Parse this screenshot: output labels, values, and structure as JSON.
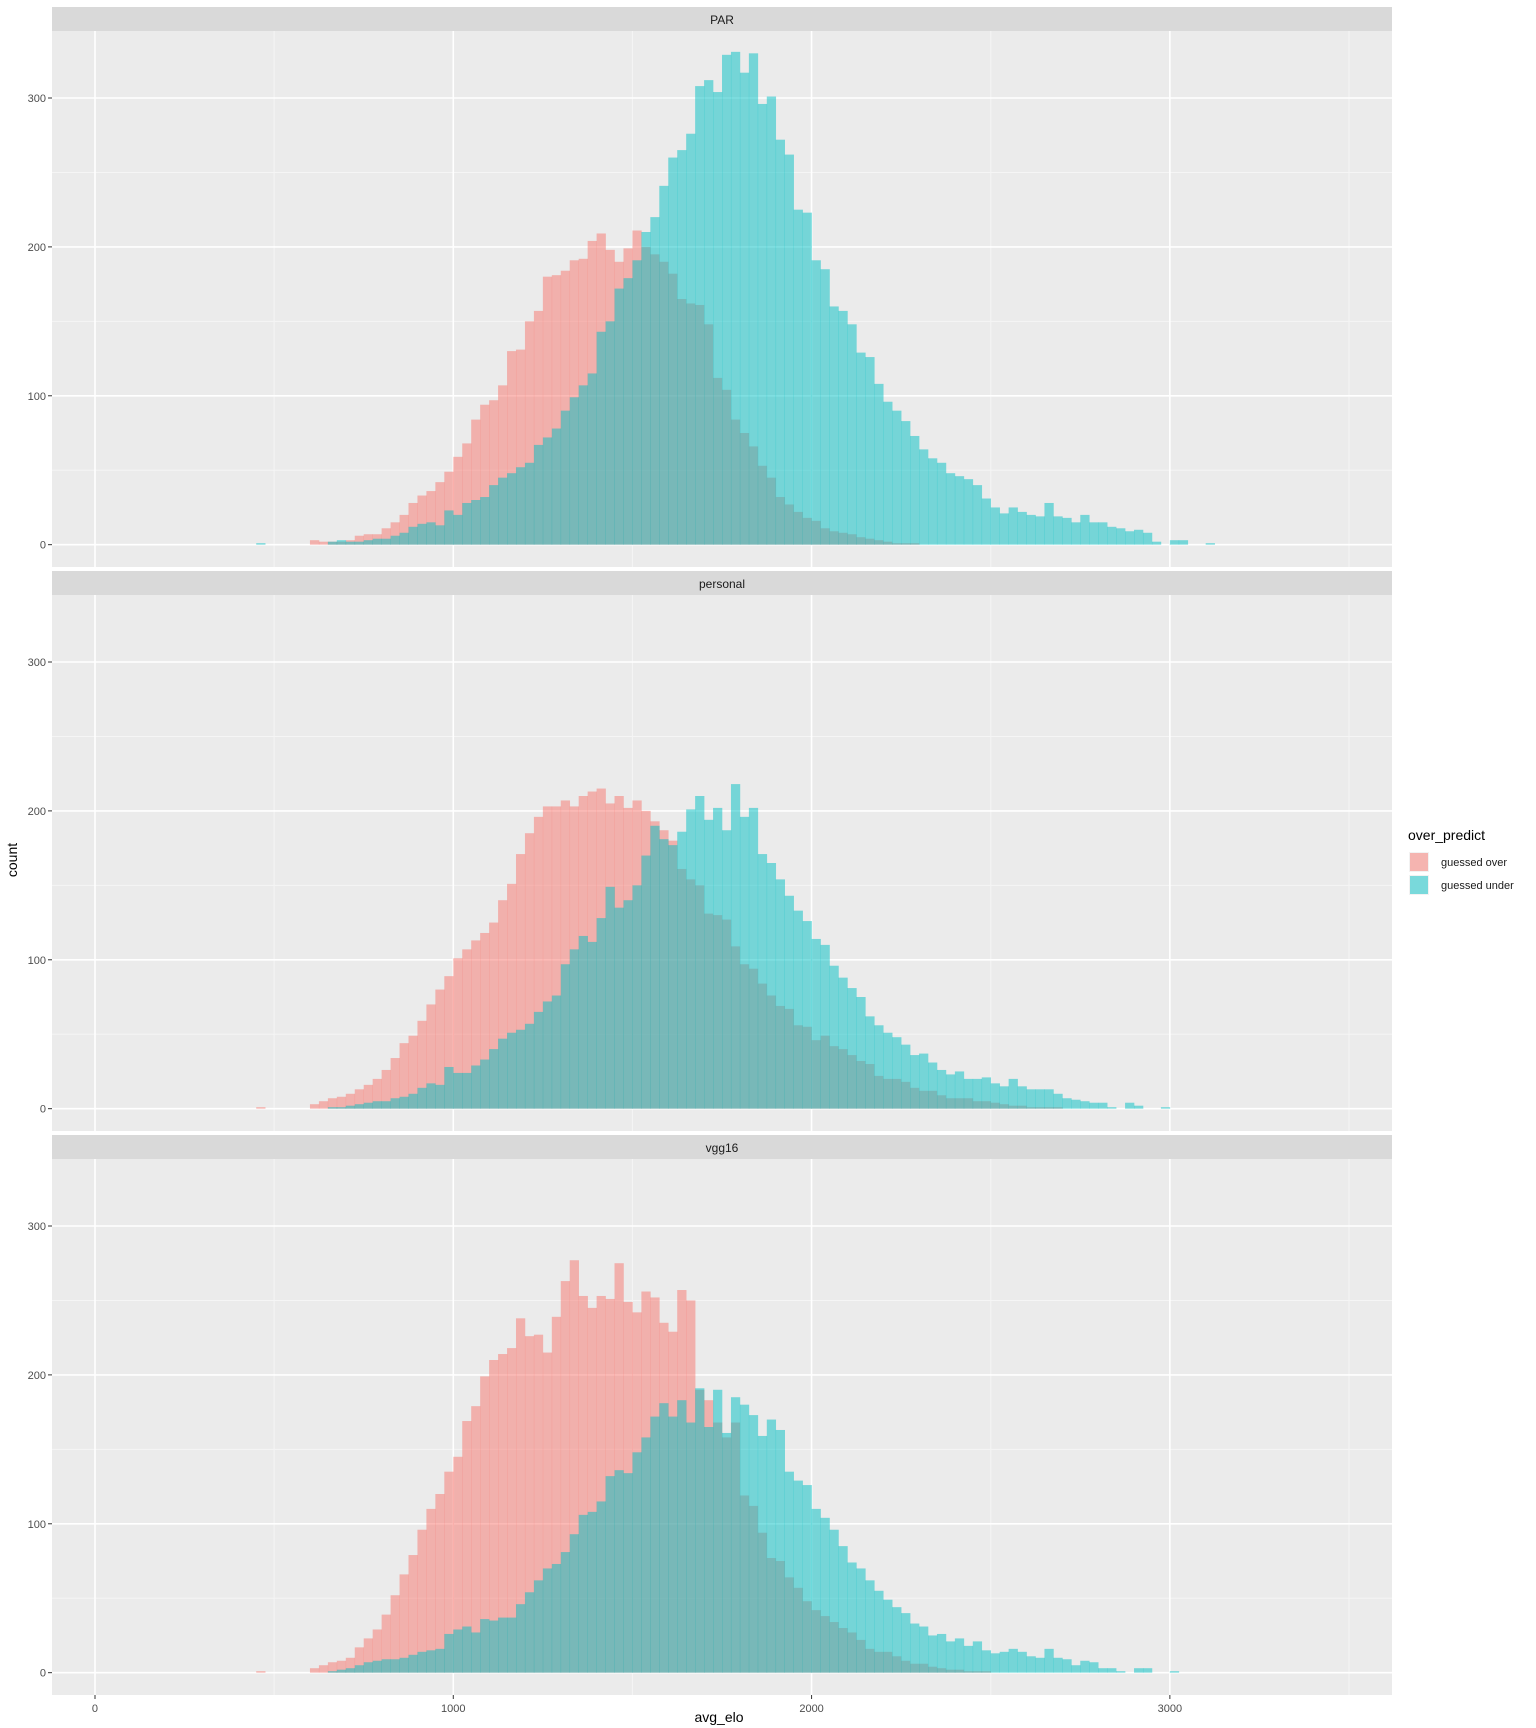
{
  "chart_data": {
    "type": "histogram",
    "xlabel": "avg_elo",
    "ylabel": "count",
    "xlim": [
      -120,
      3620
    ],
    "ylim": [
      -15,
      345
    ],
    "x_ticks": [
      0,
      1000,
      2000,
      3000
    ],
    "y_ticks": [
      0,
      100,
      200,
      300
    ],
    "grid": true,
    "bin_start": 450,
    "bin_width": 25,
    "legend": {
      "title": "over_predict",
      "position": "right",
      "entries": [
        {
          "label": "guessed over",
          "color": "#F8766D"
        },
        {
          "label": "guessed under",
          "color": "#00BFC4"
        }
      ]
    },
    "panels": [
      {
        "title": "PAR",
        "series": [
          {
            "name": "guessed over",
            "color": "#F8766D",
            "values": [
              0,
              0,
              0,
              0,
              0,
              0,
              3,
              2,
              2,
              2,
              3,
              6,
              7,
              7,
              11,
              15,
              20,
              28,
              33,
              36,
              42,
              49,
              59,
              68,
              84,
              94,
              97,
              107,
              130,
              131,
              150,
              157,
              180,
              181,
              184,
              191,
              192,
              204,
              209,
              198,
              190,
              199,
              211,
              200,
              195,
              190,
              182,
              165,
              162,
              161,
              148,
              112,
              104,
              84,
              75,
              66,
              53,
              45,
              32,
              27,
              22,
              18,
              16,
              11,
              9,
              8,
              7,
              5,
              4,
              3,
              2,
              1,
              1,
              1,
              0,
              0,
              0,
              0,
              0,
              0,
              0,
              0,
              0,
              0,
              0,
              0,
              0,
              0,
              0,
              0,
              0,
              0,
              0,
              0,
              0,
              0,
              0,
              0,
              0,
              0,
              0,
              0,
              0,
              0,
              0,
              0,
              0,
              0,
              0,
              0
            ]
          },
          {
            "name": "guessed under",
            "color": "#00BFC4",
            "values": [
              1,
              0,
              0,
              0,
              0,
              0,
              0,
              0,
              2,
              3,
              2,
              2,
              3,
              4,
              4,
              6,
              8,
              12,
              14,
              15,
              13,
              23,
              20,
              28,
              30,
              32,
              40,
              45,
              48,
              52,
              55,
              67,
              72,
              78,
              90,
              99,
              107,
              115,
              143,
              150,
              172,
              179,
              191,
              210,
              220,
              241,
              260,
              265,
              276,
              308,
              312,
              304,
              329,
              331,
              317,
              330,
              296,
              301,
              272,
              262,
              225,
              223,
              191,
              185,
              160,
              157,
              148,
              129,
              126,
              108,
              96,
              90,
              83,
              73,
              64,
              58,
              55,
              48,
              46,
              44,
              40,
              31,
              25,
              21,
              25,
              22,
              20,
              19,
              28,
              19,
              18,
              15,
              20,
              15,
              15,
              12,
              11,
              9,
              10,
              8,
              2,
              0,
              3,
              3,
              0,
              0,
              1,
              0,
              0,
              0,
              0
            ]
          }
        ]
      },
      {
        "title": "personal",
        "series": [
          {
            "name": "guessed over",
            "color": "#F8766D",
            "values": [
              1,
              0,
              0,
              0,
              0,
              0,
              3,
              5,
              7,
              8,
              10,
              13,
              16,
              20,
              26,
              34,
              44,
              49,
              59,
              70,
              80,
              89,
              101,
              107,
              113,
              118,
              125,
              140,
              151,
              171,
              185,
              196,
              203,
              203,
              207,
              203,
              210,
              213,
              215,
              205,
              210,
              202,
              207,
              200,
              193,
              187,
              180,
              161,
              154,
              150,
              131,
              130,
              127,
              109,
              97,
              94,
              84,
              76,
              69,
              67,
              56,
              55,
              46,
              49,
              42,
              40,
              36,
              32,
              30,
              22,
              20,
              20,
              18,
              14,
              12,
              12,
              9,
              7,
              7,
              7,
              5,
              5,
              4,
              3,
              2,
              2,
              1,
              1,
              1,
              1,
              0,
              0,
              0,
              0,
              0,
              0,
              0,
              0,
              0,
              0,
              0,
              0,
              0,
              0,
              0,
              0,
              0,
              0,
              0,
              0,
              0
            ]
          },
          {
            "name": "guessed under",
            "color": "#00BFC4",
            "values": [
              0,
              0,
              0,
              0,
              0,
              0,
              0,
              0,
              1,
              1,
              2,
              3,
              4,
              5,
              5,
              7,
              8,
              10,
              14,
              17,
              16,
              28,
              24,
              24,
              29,
              33,
              40,
              47,
              51,
              53,
              57,
              65,
              72,
              76,
              97,
              107,
              116,
              112,
              128,
              149,
              135,
              140,
              150,
              170,
              190,
              181,
              177,
              186,
              201,
              210,
              194,
              202,
              187,
              218,
              196,
              202,
              171,
              165,
              154,
              143,
              133,
              126,
              114,
              110,
              96,
              88,
              81,
              75,
              62,
              56,
              51,
              48,
              43,
              36,
              37,
              31,
              26,
              23,
              25,
              20,
              20,
              21,
              17,
              15,
              20,
              15,
              13,
              13,
              13,
              10,
              7,
              6,
              5,
              4,
              4,
              1,
              0,
              4,
              2,
              0,
              0,
              1,
              0,
              0,
              0,
              0,
              0,
              0,
              0,
              0,
              0
            ]
          }
        ]
      },
      {
        "title": "vgg16",
        "series": [
          {
            "name": "guessed over",
            "color": "#F8766D",
            "values": [
              1,
              0,
              0,
              0,
              0,
              0,
              3,
              5,
              7,
              8,
              10,
              17,
              23,
              29,
              39,
              52,
              66,
              79,
              96,
              110,
              120,
              135,
              145,
              169,
              179,
              199,
              210,
              214,
              218,
              238,
              226,
              227,
              215,
              239,
              263,
              277,
              253,
              245,
              253,
              251,
              275,
              249,
              242,
              256,
              252,
              235,
              229,
              257,
              250,
              190,
              183,
              168,
              158,
              168,
              119,
              112,
              94,
              77,
              75,
              64,
              57,
              48,
              42,
              38,
              34,
              30,
              27,
              22,
              16,
              14,
              14,
              11,
              8,
              6,
              6,
              4,
              3,
              2,
              2,
              1,
              1,
              1,
              0,
              0,
              0,
              0,
              0,
              0,
              0,
              0,
              0,
              0,
              0,
              0,
              0,
              0,
              0,
              0,
              0,
              0,
              0,
              0,
              0,
              0,
              0,
              0,
              0,
              0,
              0,
              0,
              0
            ]
          },
          {
            "name": "guessed under",
            "color": "#00BFC4",
            "values": [
              0,
              0,
              0,
              0,
              0,
              0,
              0,
              0,
              1,
              2,
              3,
              5,
              7,
              8,
              9,
              9,
              10,
              12,
              14,
              15,
              16,
              26,
              29,
              31,
              27,
              36,
              35,
              37,
              37,
              46,
              54,
              62,
              70,
              73,
              81,
              93,
              106,
              108,
              115,
              132,
              136,
              134,
              148,
              158,
              172,
              181,
              172,
              183,
              168,
              191,
              165,
              190,
              161,
              185,
              180,
              173,
              159,
              170,
              163,
              135,
              129,
              126,
              110,
              104,
              96,
              85,
              74,
              70,
              62,
              55,
              49,
              44,
              40,
              33,
              31,
              25,
              26,
              21,
              23,
              18,
              21,
              15,
              13,
              14,
              16,
              14,
              11,
              10,
              16,
              10,
              9,
              5,
              8,
              7,
              3,
              3,
              1,
              0,
              3,
              3,
              0,
              0,
              1,
              0,
              0,
              0,
              0,
              0,
              0,
              0,
              0
            ]
          }
        ]
      }
    ]
  }
}
